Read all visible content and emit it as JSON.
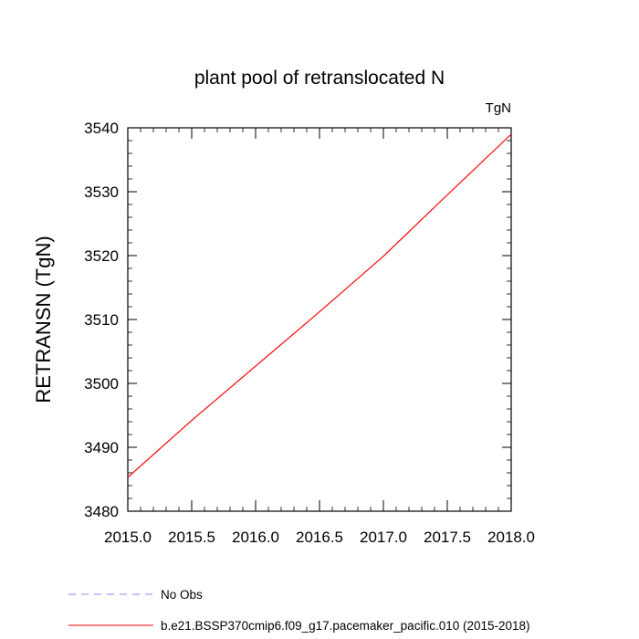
{
  "chart_data": {
    "type": "line",
    "title": "plant pool of retranslocated N",
    "units_label": "TgN",
    "ylabel": "RETRANSN  (TgN)",
    "xlabel": "",
    "xlim": [
      2015.0,
      2018.0
    ],
    "ylim": [
      3480,
      3540
    ],
    "x_ticks": [
      2015.0,
      2015.5,
      2016.0,
      2016.5,
      2017.0,
      2017.5,
      2018.0
    ],
    "x_tick_labels": [
      "2015.0",
      "2015.5",
      "2016.0",
      "2016.5",
      "2017.0",
      "2017.5",
      "2018.0"
    ],
    "y_ticks": [
      3480,
      3490,
      3500,
      3510,
      3520,
      3530,
      3540
    ],
    "y_tick_labels": [
      "3480",
      "3490",
      "3500",
      "3510",
      "3520",
      "3530",
      "3540"
    ],
    "grid": false,
    "legend_position": "bottom",
    "series": [
      {
        "name": "b.e21.BSSP370cmip6.f09_g17.pacemaker_pacific.010 (2015-2018)",
        "color": "#ff0000",
        "style": "solid",
        "x": [
          2015.0,
          2015.5,
          2016.0,
          2016.5,
          2017.0,
          2017.5,
          2018.0
        ],
        "values": [
          3485.3,
          3494.2,
          3502.7,
          3511.2,
          3519.9,
          3529.5,
          3539.0
        ]
      },
      {
        "name": "No Obs",
        "color": "#8888ff",
        "style": "dashed",
        "x": [],
        "values": []
      }
    ]
  }
}
